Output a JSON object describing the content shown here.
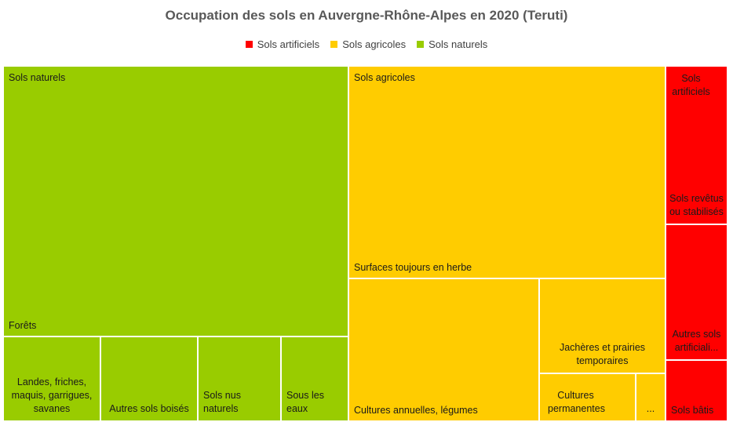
{
  "chart_data": {
    "type": "treemap",
    "title": "Occupation des sols en Auvergne-Rhône-Alpes en 2020 (Teruti)",
    "legend": [
      "Sols artificiels",
      "Sols agricoles",
      "Sols naturels"
    ],
    "legend_position": "top-center",
    "colors": {
      "Sols artificiels": "#ff0000",
      "Sols agricoles": "#ffcc00",
      "Sols naturels": "#99cc00"
    },
    "groups": [
      {
        "name": "Sols naturels",
        "items": [
          {
            "label": "Forêts",
            "value": 42.0
          },
          {
            "label": "Landes, friches, maquis, garrigues, savanes",
            "value": 5.2
          },
          {
            "label": "Autres sols boisés",
            "value": 5.2
          },
          {
            "label": "Sols nus naturels",
            "value": 4.4
          },
          {
            "label": "Sous les eaux",
            "value": 3.5
          }
        ]
      },
      {
        "name": "Sols agricoles",
        "items": [
          {
            "label": "Surfaces toujours en herbe",
            "value": 19.8
          },
          {
            "label": "Cultures annuelles, légumes",
            "value": 9.2
          },
          {
            "label": "Jachères et prairies temporaires",
            "value": 5.5
          },
          {
            "label": "Cultures permanentes",
            "value": 2.7
          },
          {
            "label": "...",
            "value": 0.8
          }
        ]
      },
      {
        "name": "Sols artificiels",
        "items": [
          {
            "label": "Sols revêtus ou stabilisés",
            "value": 3.2
          },
          {
            "label": "Autres sols artificiali...",
            "value": 2.7
          },
          {
            "label": "Sols bâtis",
            "value": 1.2
          }
        ]
      }
    ]
  }
}
